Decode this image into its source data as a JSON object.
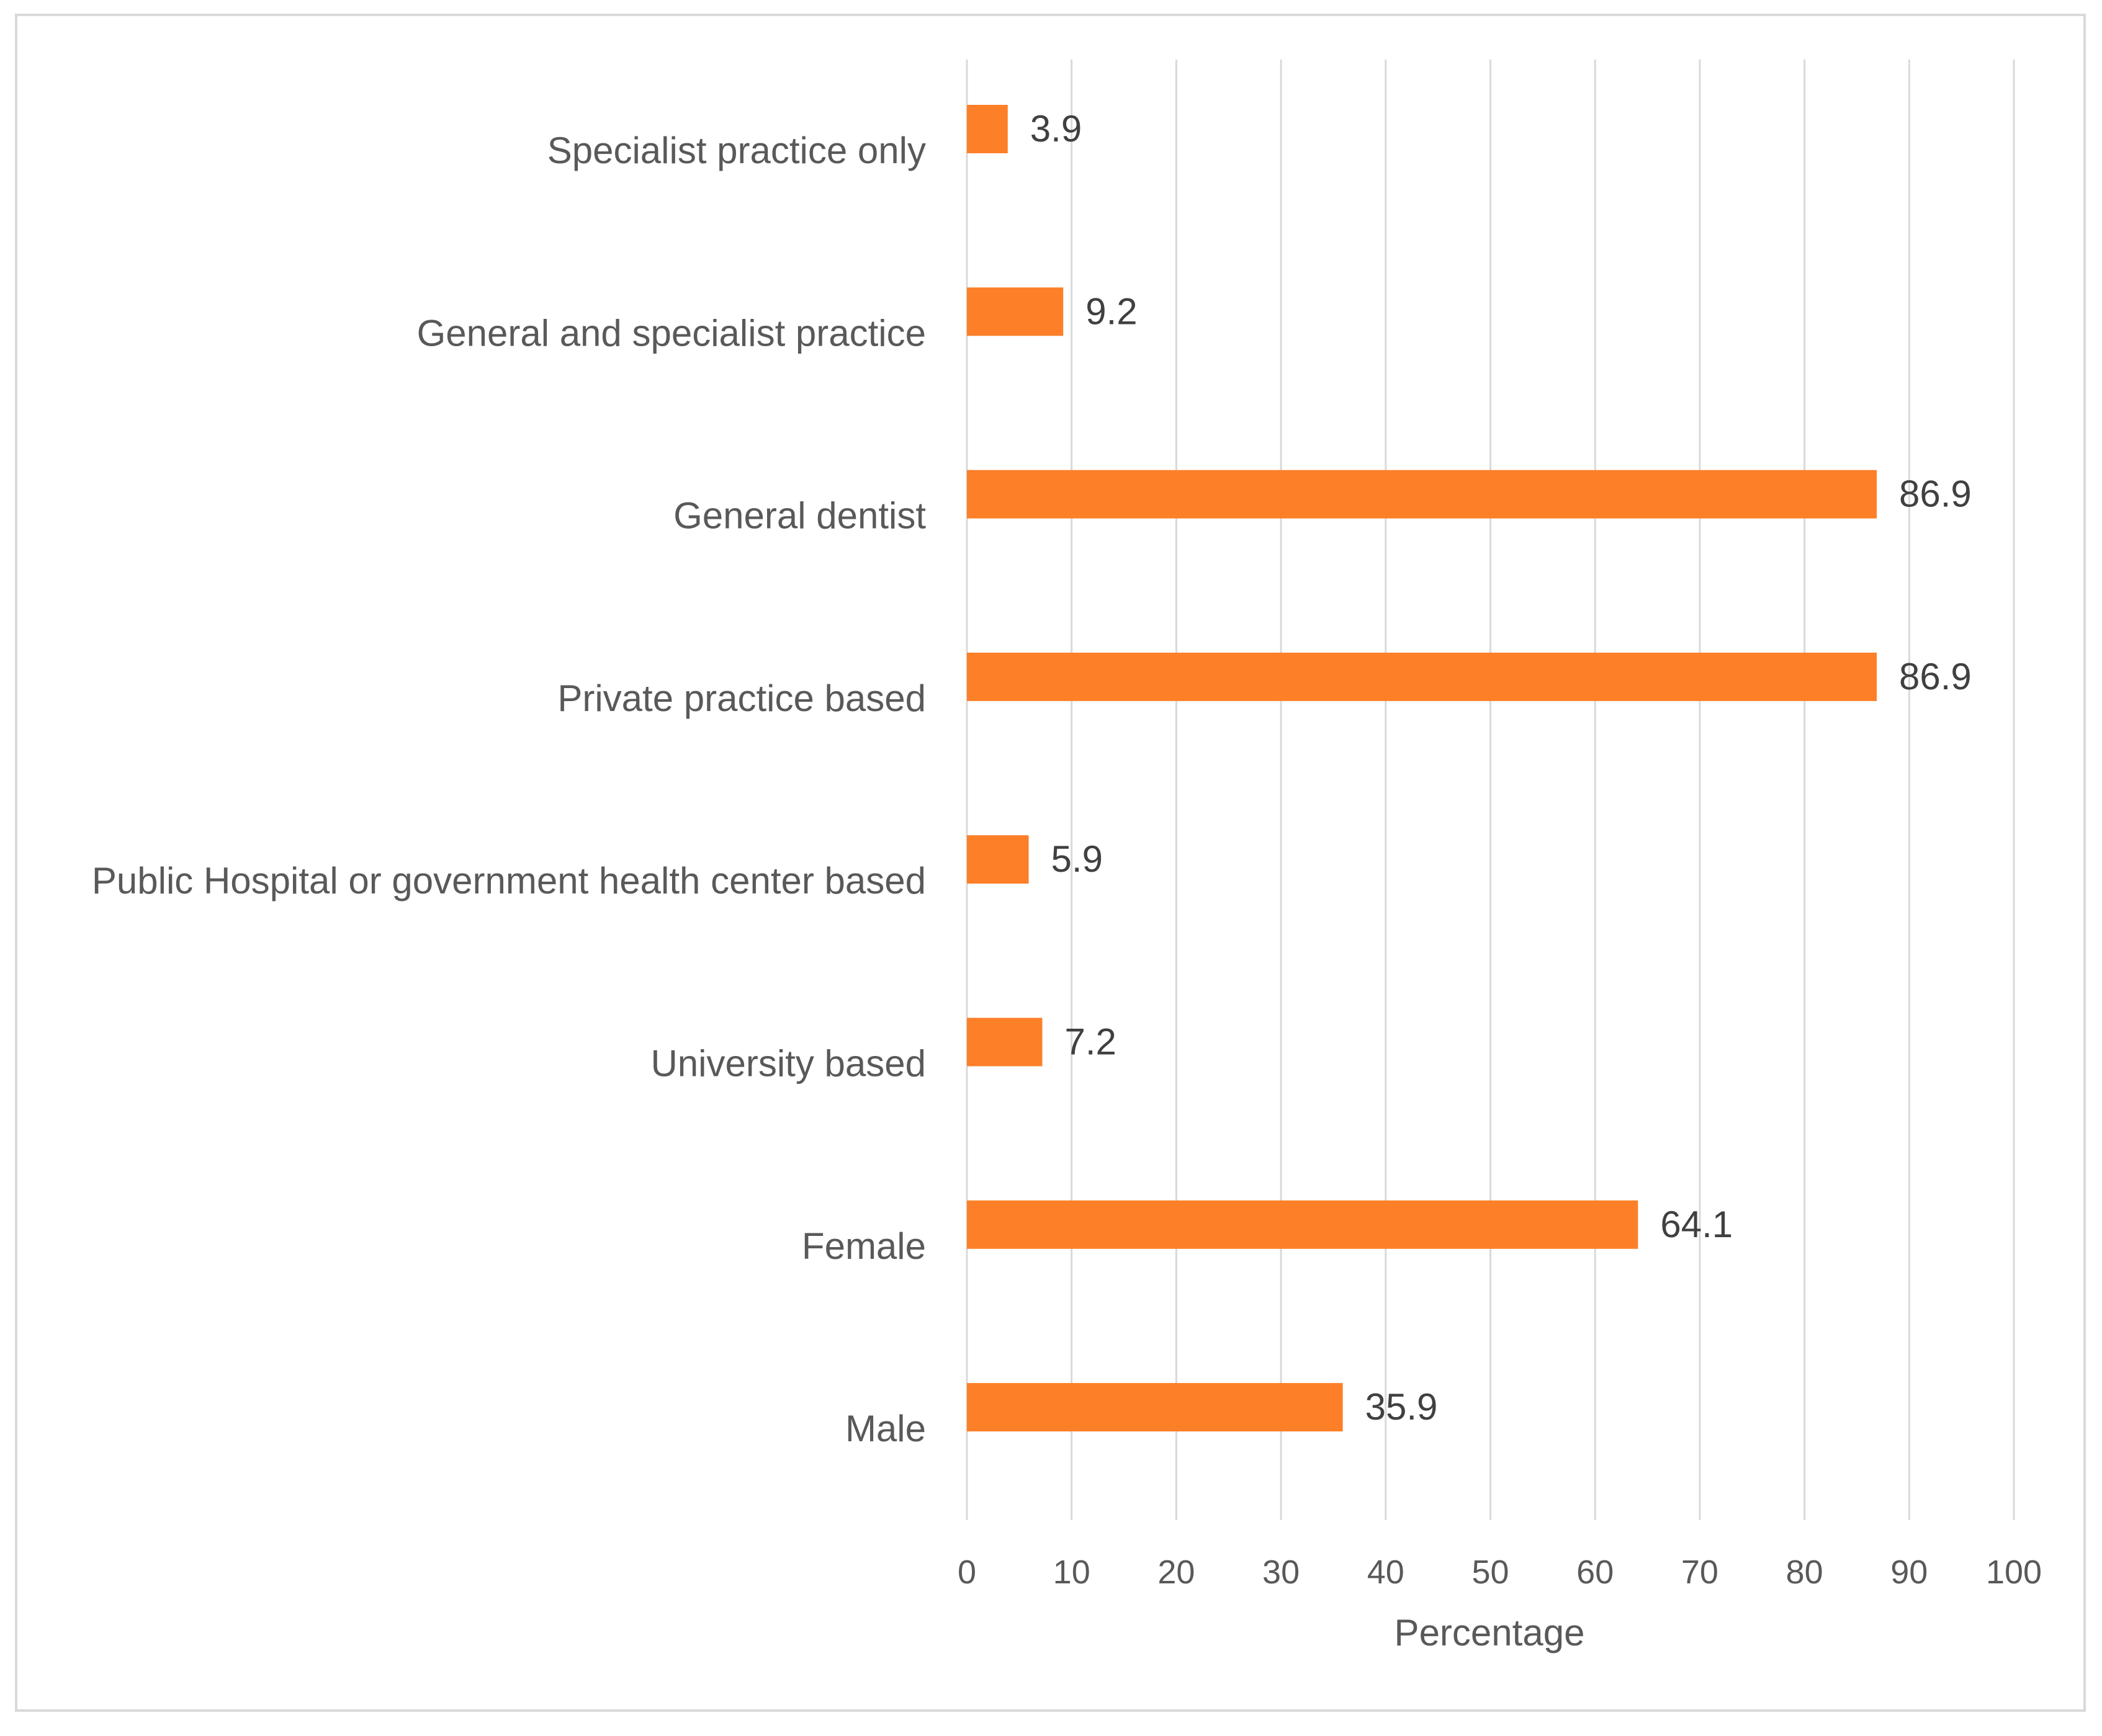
{
  "chart_data": {
    "type": "bar",
    "orientation": "horizontal",
    "title": "",
    "categories": [
      "Specialist practice only",
      "General and specialist practice",
      "General dentist",
      "Private practice based",
      "Public Hospital or government health center based",
      "University based",
      "Female",
      "Male"
    ],
    "values": [
      3.9,
      9.2,
      86.9,
      86.9,
      5.9,
      7.2,
      64.1,
      35.9
    ],
    "value_labels": [
      "3.9",
      "9.2",
      "86.9",
      "86.9",
      "5.9",
      "7.2",
      "64.1",
      "35.9"
    ],
    "xlabel": "Percentage",
    "ylabel": "",
    "xlim": [
      0,
      100
    ],
    "xticks": [
      0,
      10,
      20,
      30,
      40,
      50,
      60,
      70,
      80,
      90,
      100
    ],
    "grid": "vertical",
    "legend": "none",
    "bar_color": "#fd7f28",
    "grid_color": "#d9d9d9"
  }
}
